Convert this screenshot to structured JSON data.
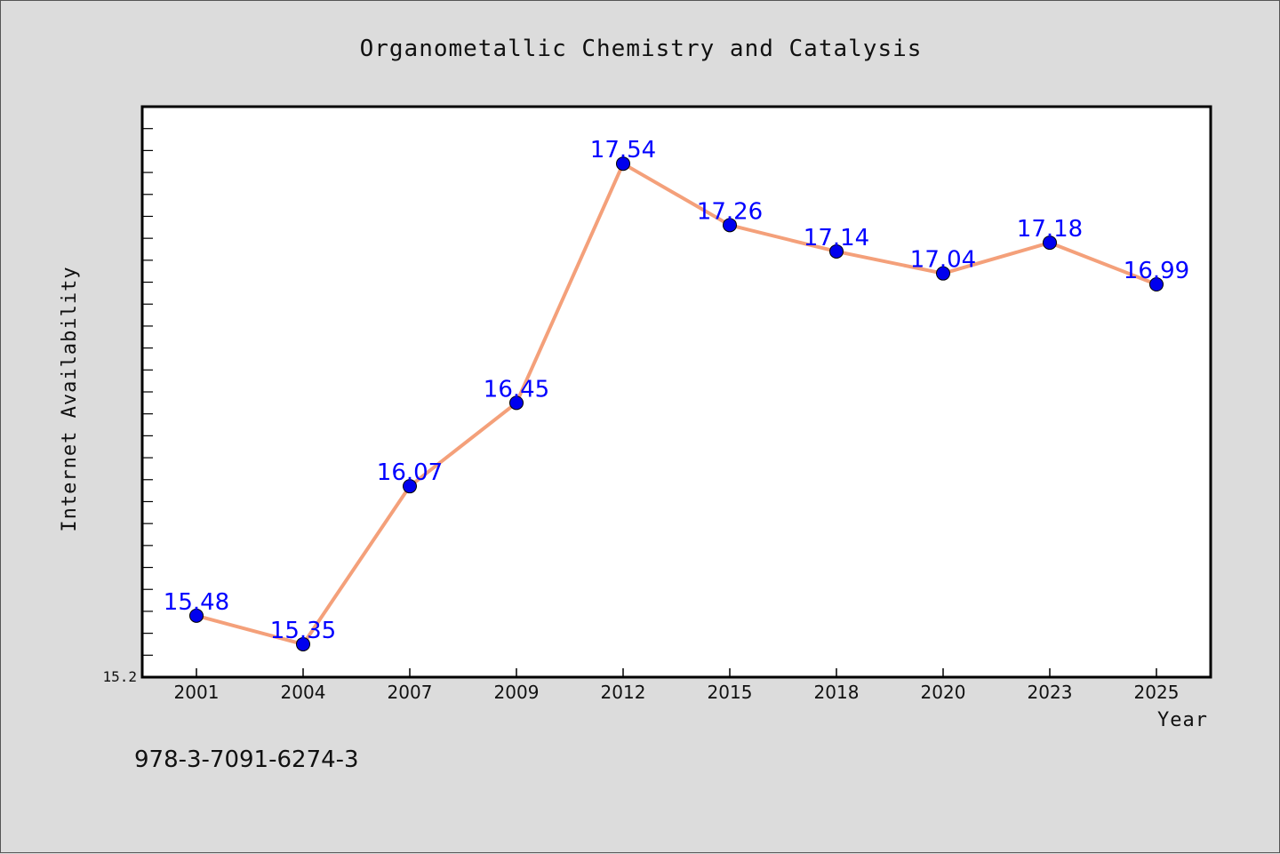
{
  "chart_data": {
    "type": "line",
    "title": "Organometallic Chemistry and Catalysis",
    "xlabel": "Year",
    "ylabel": "Internet Availability",
    "categories": [
      "2001",
      "2004",
      "2007",
      "2009",
      "2012",
      "2015",
      "2018",
      "2020",
      "2023",
      "2025"
    ],
    "series": [
      {
        "values": [
          15.48,
          15.35,
          16.07,
          16.45,
          17.54,
          17.26,
          17.14,
          17.04,
          17.18,
          16.99
        ],
        "line_color": "#f4a07a",
        "marker_color": "#0000ee"
      }
    ],
    "data_labels": [
      "15.48",
      "15.35",
      "16.07",
      "16.45",
      "17.54",
      "17.26",
      "17.14",
      "17.04",
      "17.18",
      "16.99"
    ],
    "ylim": [
      15.2,
      17.8
    ],
    "y_min_label": "15.2",
    "grid": false,
    "label_color": "#0000ff"
  },
  "footer": {
    "isbn": "978-3-7091-6274-3"
  }
}
